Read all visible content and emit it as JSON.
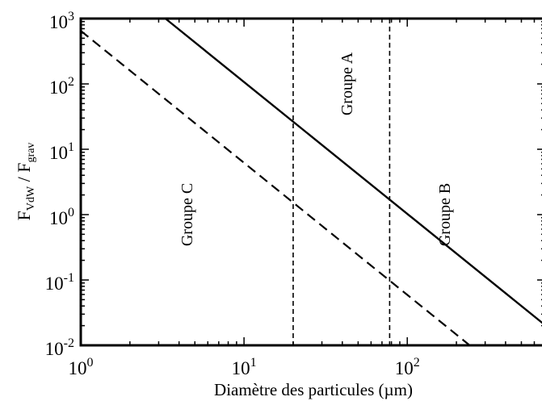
{
  "chart_data": {
    "type": "line",
    "title": "",
    "xlabel": "Diamètre des particules (µm)",
    "ylabel": {
      "base": "F",
      "num_sub": "VdW",
      "den_sub": "grav"
    },
    "xscale": "log",
    "yscale": "log",
    "xlim": [
      1,
      700
    ],
    "ylim": [
      0.01,
      1000
    ],
    "xticks": [
      {
        "value": 1,
        "base": "10",
        "exp": "0"
      },
      {
        "value": 10,
        "base": "10",
        "exp": "1"
      },
      {
        "value": 100,
        "base": "10",
        "exp": "2"
      }
    ],
    "yticks": [
      {
        "value": 0.01,
        "base": "10",
        "exp": "-2"
      },
      {
        "value": 0.1,
        "base": "10",
        "exp": "-1"
      },
      {
        "value": 1,
        "base": "10",
        "exp": "0"
      },
      {
        "value": 10,
        "base": "10",
        "exp": "1"
      },
      {
        "value": 100,
        "base": "10",
        "exp": "2"
      },
      {
        "value": 1000,
        "base": "10",
        "exp": "3"
      }
    ],
    "grid": false,
    "legend": "none",
    "series": [
      {
        "style": "solid",
        "x": [
          3.3,
          700
        ],
        "y": [
          1000,
          0.0203
        ]
      },
      {
        "style": "dashed",
        "x": [
          1,
          240
        ],
        "y": [
          650,
          0.0101
        ]
      }
    ],
    "vlines": [
      {
        "x": 20,
        "style": "dashed"
      },
      {
        "x": 78,
        "style": "dashed"
      }
    ],
    "annotations": [
      {
        "text": "Groupe C",
        "x": 4.5,
        "y": 1.0,
        "rotation": -90
      },
      {
        "text": "Groupe A",
        "x": 43,
        "y": 100,
        "rotation": -90
      },
      {
        "text": "Groupe B",
        "x": 170,
        "y": 1.0,
        "rotation": -90
      }
    ]
  }
}
